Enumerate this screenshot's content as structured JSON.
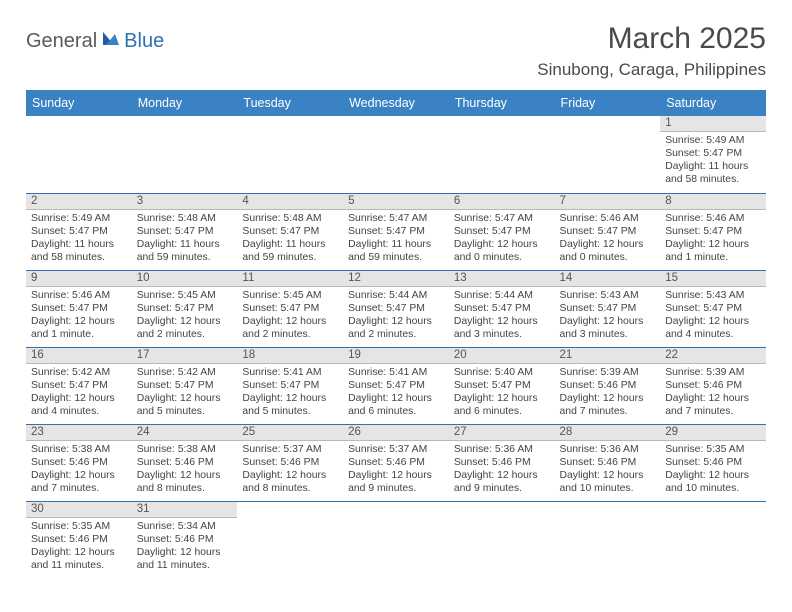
{
  "brand": {
    "part1": "General",
    "part2": "Blue"
  },
  "title": "March 2025",
  "location": "Sinubong, Caraga, Philippines",
  "colors": {
    "header_bg": "#3a82c4",
    "header_text": "#ffffff",
    "row_divider": "#2f71b3",
    "daynum_bg": "#e5e5e5",
    "daynum_border": "#b8b8b8",
    "body_text": "#444444",
    "title_text": "#4a4a4a",
    "logo_gray": "#5a5a5a",
    "logo_blue": "#2f71b3",
    "page_bg": "#ffffff"
  },
  "typography": {
    "month_title_size": 30,
    "location_size": 17,
    "weekday_size": 12.5,
    "daynum_size": 11.5,
    "cell_size": 10.4
  },
  "weekdays": [
    "Sunday",
    "Monday",
    "Tuesday",
    "Wednesday",
    "Thursday",
    "Friday",
    "Saturday"
  ],
  "weeks": [
    [
      null,
      null,
      null,
      null,
      null,
      null,
      {
        "n": "1",
        "sr": "5:49 AM",
        "ss": "5:47 PM",
        "dl": "11 hours and 58 minutes."
      }
    ],
    [
      {
        "n": "2",
        "sr": "5:49 AM",
        "ss": "5:47 PM",
        "dl": "11 hours and 58 minutes."
      },
      {
        "n": "3",
        "sr": "5:48 AM",
        "ss": "5:47 PM",
        "dl": "11 hours and 59 minutes."
      },
      {
        "n": "4",
        "sr": "5:48 AM",
        "ss": "5:47 PM",
        "dl": "11 hours and 59 minutes."
      },
      {
        "n": "5",
        "sr": "5:47 AM",
        "ss": "5:47 PM",
        "dl": "11 hours and 59 minutes."
      },
      {
        "n": "6",
        "sr": "5:47 AM",
        "ss": "5:47 PM",
        "dl": "12 hours and 0 minutes."
      },
      {
        "n": "7",
        "sr": "5:46 AM",
        "ss": "5:47 PM",
        "dl": "12 hours and 0 minutes."
      },
      {
        "n": "8",
        "sr": "5:46 AM",
        "ss": "5:47 PM",
        "dl": "12 hours and 1 minute."
      }
    ],
    [
      {
        "n": "9",
        "sr": "5:46 AM",
        "ss": "5:47 PM",
        "dl": "12 hours and 1 minute."
      },
      {
        "n": "10",
        "sr": "5:45 AM",
        "ss": "5:47 PM",
        "dl": "12 hours and 2 minutes."
      },
      {
        "n": "11",
        "sr": "5:45 AM",
        "ss": "5:47 PM",
        "dl": "12 hours and 2 minutes."
      },
      {
        "n": "12",
        "sr": "5:44 AM",
        "ss": "5:47 PM",
        "dl": "12 hours and 2 minutes."
      },
      {
        "n": "13",
        "sr": "5:44 AM",
        "ss": "5:47 PM",
        "dl": "12 hours and 3 minutes."
      },
      {
        "n": "14",
        "sr": "5:43 AM",
        "ss": "5:47 PM",
        "dl": "12 hours and 3 minutes."
      },
      {
        "n": "15",
        "sr": "5:43 AM",
        "ss": "5:47 PM",
        "dl": "12 hours and 4 minutes."
      }
    ],
    [
      {
        "n": "16",
        "sr": "5:42 AM",
        "ss": "5:47 PM",
        "dl": "12 hours and 4 minutes."
      },
      {
        "n": "17",
        "sr": "5:42 AM",
        "ss": "5:47 PM",
        "dl": "12 hours and 5 minutes."
      },
      {
        "n": "18",
        "sr": "5:41 AM",
        "ss": "5:47 PM",
        "dl": "12 hours and 5 minutes."
      },
      {
        "n": "19",
        "sr": "5:41 AM",
        "ss": "5:47 PM",
        "dl": "12 hours and 6 minutes."
      },
      {
        "n": "20",
        "sr": "5:40 AM",
        "ss": "5:47 PM",
        "dl": "12 hours and 6 minutes."
      },
      {
        "n": "21",
        "sr": "5:39 AM",
        "ss": "5:46 PM",
        "dl": "12 hours and 7 minutes."
      },
      {
        "n": "22",
        "sr": "5:39 AM",
        "ss": "5:46 PM",
        "dl": "12 hours and 7 minutes."
      }
    ],
    [
      {
        "n": "23",
        "sr": "5:38 AM",
        "ss": "5:46 PM",
        "dl": "12 hours and 7 minutes."
      },
      {
        "n": "24",
        "sr": "5:38 AM",
        "ss": "5:46 PM",
        "dl": "12 hours and 8 minutes."
      },
      {
        "n": "25",
        "sr": "5:37 AM",
        "ss": "5:46 PM",
        "dl": "12 hours and 8 minutes."
      },
      {
        "n": "26",
        "sr": "5:37 AM",
        "ss": "5:46 PM",
        "dl": "12 hours and 9 minutes."
      },
      {
        "n": "27",
        "sr": "5:36 AM",
        "ss": "5:46 PM",
        "dl": "12 hours and 9 minutes."
      },
      {
        "n": "28",
        "sr": "5:36 AM",
        "ss": "5:46 PM",
        "dl": "12 hours and 10 minutes."
      },
      {
        "n": "29",
        "sr": "5:35 AM",
        "ss": "5:46 PM",
        "dl": "12 hours and 10 minutes."
      }
    ],
    [
      {
        "n": "30",
        "sr": "5:35 AM",
        "ss": "5:46 PM",
        "dl": "12 hours and 11 minutes."
      },
      {
        "n": "31",
        "sr": "5:34 AM",
        "ss": "5:46 PM",
        "dl": "12 hours and 11 minutes."
      },
      null,
      null,
      null,
      null,
      null
    ]
  ],
  "labels": {
    "sunrise": "Sunrise:",
    "sunset": "Sunset:",
    "daylight": "Daylight:"
  }
}
